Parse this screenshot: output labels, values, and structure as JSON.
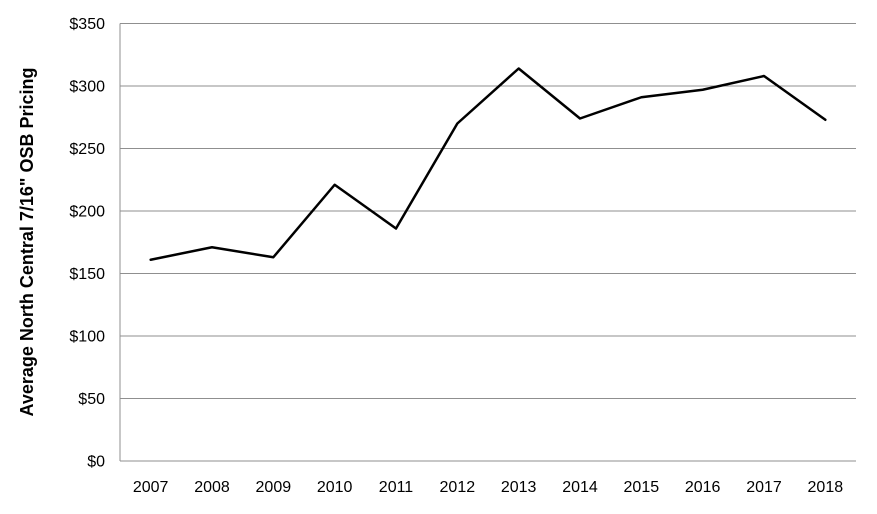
{
  "chart_data": {
    "type": "line",
    "title": "",
    "xlabel": "",
    "ylabel": "Average North Central 7/16\" OSB Pricing",
    "categories": [
      "2007",
      "2008",
      "2009",
      "2010",
      "2011",
      "2012",
      "2013",
      "2014",
      "2015",
      "2016",
      "2017",
      "2018"
    ],
    "values": [
      161,
      171,
      163,
      221,
      186,
      270,
      314,
      274,
      291,
      297,
      308,
      273
    ],
    "ylim": [
      0,
      350
    ],
    "ytick_step": 50,
    "ytick_labels": [
      "$0",
      "$50",
      "$100",
      "$150",
      "$200",
      "$250",
      "$300",
      "$350"
    ],
    "grid": true,
    "legend": "none",
    "line_color": "#000000",
    "gridline_color": "#8f8f8f",
    "axis_color": "#8f8f8f",
    "background_color": "#ffffff",
    "text_color": "#000000"
  }
}
